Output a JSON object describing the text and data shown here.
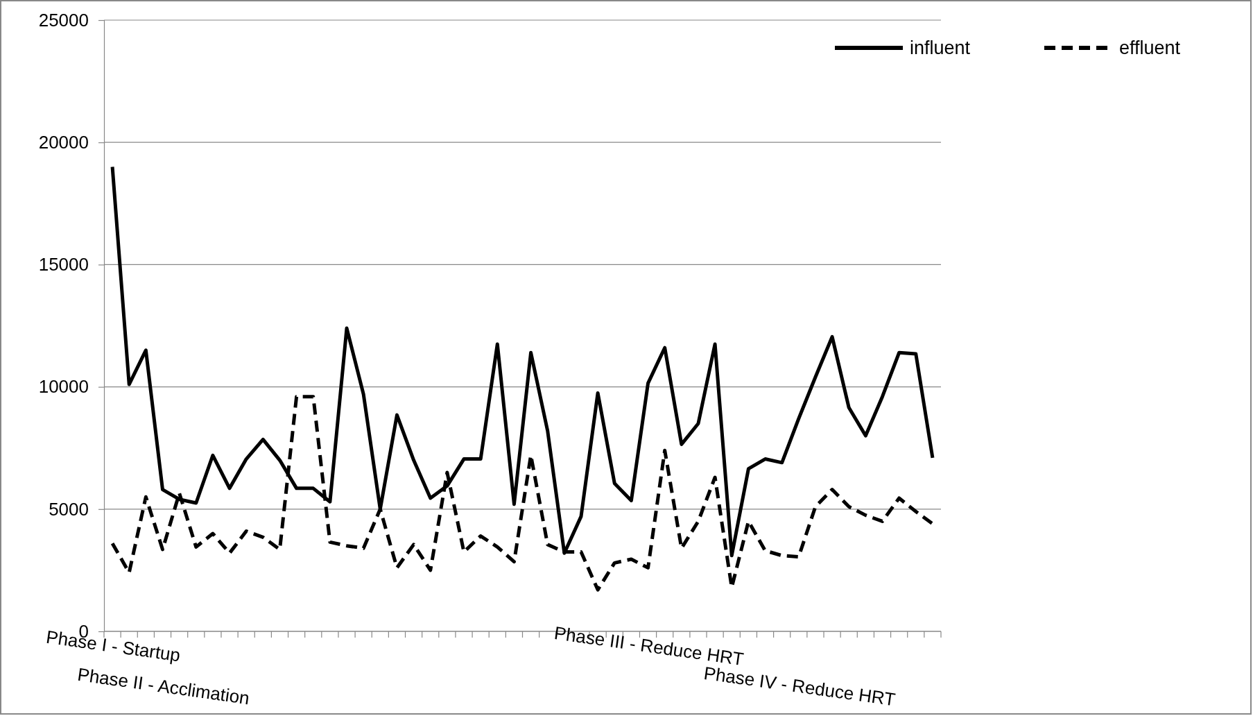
{
  "chart_data": {
    "type": "line",
    "categories": [
      "Phase I - Startup",
      null,
      null,
      "Phase II - Acclimation",
      null,
      null,
      null,
      null,
      null,
      null,
      null,
      null,
      null,
      null,
      null,
      null,
      null,
      null,
      null,
      null,
      null,
      null,
      null,
      null,
      null,
      null,
      null,
      null,
      null,
      null,
      null,
      null,
      "Phase III - Reduce HRT",
      null,
      null,
      null,
      null,
      null,
      null,
      null,
      null,
      "Phase IV - Reduce HRT",
      null,
      null,
      null,
      null,
      null,
      null,
      null,
      null
    ],
    "series": [
      {
        "name": "influent",
        "color": "#000000",
        "line_style": "solid",
        "values": [
          19000,
          10100,
          11500,
          5800,
          5400,
          5250,
          7200,
          5850,
          7050,
          7850,
          7000,
          5850,
          5850,
          5300,
          12400,
          9700,
          5000,
          8850,
          7000,
          5450,
          5950,
          7050,
          7050,
          11750,
          5200,
          11400,
          8200,
          3200,
          4700,
          9750,
          6050,
          5350,
          10150,
          11600,
          7650,
          8500,
          11750,
          3100,
          6650,
          7050,
          6900,
          8700,
          10400,
          12050,
          9150,
          8000,
          9600,
          11400,
          11350,
          7100
        ]
      },
      {
        "name": "effluent",
        "color": "#000000",
        "line_style": "dashed",
        "values": [
          3600,
          2400,
          5500,
          3350,
          5650,
          3450,
          4000,
          3200,
          4100,
          3850,
          3350,
          9600,
          9600,
          3650,
          3500,
          3400,
          5000,
          2600,
          3550,
          2500,
          6500,
          3250,
          3900,
          3450,
          2850,
          7200,
          3550,
          3250,
          3250,
          1700,
          2800,
          2950,
          2600,
          7400,
          3400,
          4500,
          6300,
          1800,
          4500,
          3300,
          3100,
          3050,
          5100,
          5800,
          5100,
          4750,
          4500,
          5450,
          4900,
          4400
        ]
      }
    ],
    "ylim": [
      0,
      25000
    ],
    "yticks": [
      0,
      5000,
      10000,
      15000,
      20000,
      25000
    ],
    "grid": "y",
    "legend": "top right",
    "marker": "none"
  }
}
